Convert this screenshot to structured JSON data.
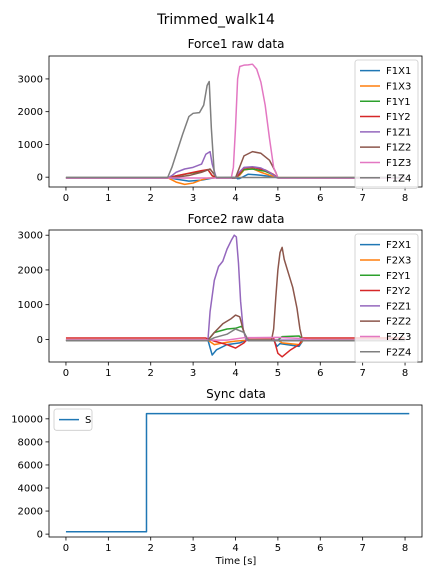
{
  "figure": {
    "suptitle": "Trimmed_walk14"
  },
  "colors": {
    "C0": "#1f77b4",
    "C1": "#ff7f0e",
    "C2": "#2ca02c",
    "C3": "#d62728",
    "C4": "#9467bd",
    "C5": "#8c564b",
    "C6": "#e377c2",
    "C7": "#7f7f7f"
  },
  "chart_data": [
    {
      "type": "line",
      "title": "Force1 raw data",
      "xlabel": "",
      "ylabel": "",
      "xlim": [
        -0.4,
        8.4
      ],
      "ylim": [
        -300,
        3700
      ],
      "xticks": [
        0,
        1,
        2,
        3,
        4,
        5,
        6,
        7,
        8
      ],
      "yticks": [
        0,
        1000,
        2000,
        3000
      ],
      "legend_position": "upper right",
      "series": [
        {
          "name": "F1X1",
          "color": "C0",
          "points": [
            [
              0,
              -10
            ],
            [
              2.4,
              -10
            ],
            [
              2.6,
              -60
            ],
            [
              2.9,
              -120
            ],
            [
              3.2,
              -90
            ],
            [
              3.4,
              -40
            ],
            [
              3.55,
              -10
            ],
            [
              4.0,
              -5
            ],
            [
              4.05,
              -50
            ],
            [
              4.1,
              -40
            ],
            [
              4.3,
              90
            ],
            [
              4.6,
              60
            ],
            [
              4.9,
              10
            ],
            [
              5.0,
              -20
            ],
            [
              8.0,
              -10
            ]
          ]
        },
        {
          "name": "F1X3",
          "color": "C1",
          "points": [
            [
              0,
              -15
            ],
            [
              2.4,
              -15
            ],
            [
              2.6,
              -150
            ],
            [
              2.8,
              -220
            ],
            [
              3.0,
              -180
            ],
            [
              3.2,
              -80
            ],
            [
              3.35,
              -30
            ],
            [
              3.55,
              -15
            ],
            [
              4.0,
              -10
            ],
            [
              4.1,
              60
            ],
            [
              4.2,
              220
            ],
            [
              4.4,
              260
            ],
            [
              4.6,
              150
            ],
            [
              4.8,
              60
            ],
            [
              4.95,
              10
            ],
            [
              5.0,
              -15
            ],
            [
              8.0,
              -15
            ]
          ]
        },
        {
          "name": "F1Y1",
          "color": "C2",
          "points": [
            [
              0,
              -20
            ],
            [
              2.4,
              -20
            ],
            [
              2.6,
              40
            ],
            [
              2.9,
              110
            ],
            [
              3.2,
              170
            ],
            [
              3.35,
              230
            ],
            [
              3.45,
              40
            ],
            [
              3.55,
              -20
            ],
            [
              4.0,
              -20
            ],
            [
              4.05,
              30
            ],
            [
              4.2,
              230
            ],
            [
              4.4,
              250
            ],
            [
              4.7,
              180
            ],
            [
              4.9,
              70
            ],
            [
              5.0,
              -20
            ],
            [
              8.0,
              -20
            ]
          ]
        },
        {
          "name": "F1Y2",
          "color": "C3",
          "points": [
            [
              0,
              -20
            ],
            [
              2.4,
              -20
            ],
            [
              2.6,
              40
            ],
            [
              2.9,
              120
            ],
            [
              3.2,
              200
            ],
            [
              3.35,
              230
            ],
            [
              3.45,
              50
            ],
            [
              3.55,
              -20
            ],
            [
              4.0,
              -20
            ],
            [
              4.05,
              40
            ],
            [
              4.2,
              280
            ],
            [
              4.4,
              300
            ],
            [
              4.7,
              220
            ],
            [
              4.9,
              80
            ],
            [
              5.0,
              -20
            ],
            [
              8.0,
              -20
            ]
          ]
        },
        {
          "name": "F1Z1",
          "color": "C4",
          "points": [
            [
              0,
              -30
            ],
            [
              2.4,
              -30
            ],
            [
              2.5,
              50
            ],
            [
              2.6,
              150
            ],
            [
              2.8,
              250
            ],
            [
              3.0,
              300
            ],
            [
              3.2,
              400
            ],
            [
              3.3,
              700
            ],
            [
              3.4,
              780
            ],
            [
              3.45,
              400
            ],
            [
              3.55,
              -30
            ],
            [
              4.0,
              -30
            ],
            [
              4.05,
              100
            ],
            [
              4.2,
              300
            ],
            [
              4.4,
              320
            ],
            [
              4.6,
              280
            ],
            [
              4.8,
              150
            ],
            [
              5.0,
              -30
            ],
            [
              8.0,
              -30
            ]
          ]
        },
        {
          "name": "F1Z2",
          "color": "C5",
          "points": [
            [
              0,
              -20
            ],
            [
              2.4,
              -20
            ],
            [
              2.6,
              0
            ],
            [
              2.9,
              50
            ],
            [
              3.2,
              150
            ],
            [
              3.4,
              250
            ],
            [
              3.5,
              80
            ],
            [
              3.55,
              -20
            ],
            [
              4.0,
              -20
            ],
            [
              4.05,
              150
            ],
            [
              4.2,
              650
            ],
            [
              4.4,
              780
            ],
            [
              4.6,
              730
            ],
            [
              4.8,
              520
            ],
            [
              4.95,
              150
            ],
            [
              5.0,
              -20
            ],
            [
              8.0,
              -20
            ]
          ]
        },
        {
          "name": "F1Z3",
          "color": "C6",
          "points": [
            [
              0,
              -25
            ],
            [
              3.9,
              -25
            ],
            [
              3.95,
              300
            ],
            [
              4.0,
              1500
            ],
            [
              4.05,
              3000
            ],
            [
              4.1,
              3380
            ],
            [
              4.2,
              3420
            ],
            [
              4.3,
              3430
            ],
            [
              4.4,
              3450
            ],
            [
              4.5,
              3300
            ],
            [
              4.6,
              2900
            ],
            [
              4.7,
              2200
            ],
            [
              4.8,
              1200
            ],
            [
              4.9,
              300
            ],
            [
              5.0,
              -25
            ],
            [
              8.0,
              -25
            ]
          ]
        },
        {
          "name": "F1Z4",
          "color": "C7",
          "points": [
            [
              0,
              -10
            ],
            [
              2.4,
              -10
            ],
            [
              2.5,
              300
            ],
            [
              2.6,
              700
            ],
            [
              2.75,
              1300
            ],
            [
              2.9,
              1850
            ],
            [
              3.0,
              1950
            ],
            [
              3.15,
              1970
            ],
            [
              3.25,
              2200
            ],
            [
              3.33,
              2800
            ],
            [
              3.38,
              2920
            ],
            [
              3.43,
              1500
            ],
            [
              3.5,
              100
            ],
            [
              3.55,
              -10
            ],
            [
              8.0,
              -10
            ]
          ]
        }
      ]
    },
    {
      "type": "line",
      "title": "Force2 raw data",
      "xlabel": "",
      "ylabel": "",
      "xlim": [
        -0.4,
        8.4
      ],
      "ylim": [
        -650,
        3150
      ],
      "xticks": [
        0,
        1,
        2,
        3,
        4,
        5,
        6,
        7,
        8
      ],
      "yticks": [
        0,
        1000,
        2000,
        3000
      ],
      "legend_position": "upper right",
      "series": [
        {
          "name": "F2X1",
          "color": "C0",
          "points": [
            [
              0,
              -20
            ],
            [
              3.35,
              -20
            ],
            [
              3.45,
              -450
            ],
            [
              3.55,
              -300
            ],
            [
              3.8,
              -150
            ],
            [
              4.1,
              -100
            ],
            [
              4.2,
              -50
            ],
            [
              4.3,
              -20
            ],
            [
              4.9,
              -20
            ],
            [
              4.98,
              -200
            ],
            [
              5.05,
              -120
            ],
            [
              5.5,
              -200
            ],
            [
              5.6,
              -20
            ],
            [
              8.0,
              -20
            ]
          ]
        },
        {
          "name": "F2X3",
          "color": "C1",
          "points": [
            [
              0,
              -20
            ],
            [
              3.35,
              -20
            ],
            [
              3.5,
              -150
            ],
            [
              3.8,
              -80
            ],
            [
              4.0,
              -50
            ],
            [
              4.3,
              -20
            ],
            [
              5.0,
              -20
            ],
            [
              5.1,
              -100
            ],
            [
              5.5,
              -150
            ],
            [
              5.6,
              -20
            ],
            [
              8.0,
              -20
            ]
          ]
        },
        {
          "name": "F2Y1",
          "color": "C2",
          "points": [
            [
              0,
              -20
            ],
            [
              3.35,
              -20
            ],
            [
              3.5,
              200
            ],
            [
              3.8,
              300
            ],
            [
              4.0,
              320
            ],
            [
              4.15,
              380
            ],
            [
              4.25,
              50
            ],
            [
              4.3,
              -20
            ],
            [
              5.0,
              -20
            ],
            [
              5.1,
              80
            ],
            [
              5.5,
              100
            ],
            [
              5.6,
              -20
            ],
            [
              8.0,
              -20
            ]
          ]
        },
        {
          "name": "F2Y2",
          "color": "C3",
          "points": [
            [
              0,
              40
            ],
            [
              3.3,
              40
            ],
            [
              3.5,
              -50
            ],
            [
              3.8,
              -150
            ],
            [
              4.0,
              -250
            ],
            [
              4.2,
              -100
            ],
            [
              4.3,
              40
            ],
            [
              4.9,
              40
            ],
            [
              5.0,
              -400
            ],
            [
              5.1,
              -500
            ],
            [
              5.3,
              -300
            ],
            [
              5.5,
              -150
            ],
            [
              5.6,
              40
            ],
            [
              8.0,
              40
            ]
          ]
        },
        {
          "name": "F2Z1",
          "color": "C4",
          "points": [
            [
              0,
              -20
            ],
            [
              3.35,
              -20
            ],
            [
              3.4,
              800
            ],
            [
              3.5,
              1700
            ],
            [
              3.6,
              2100
            ],
            [
              3.7,
              2250
            ],
            [
              3.8,
              2600
            ],
            [
              3.9,
              2850
            ],
            [
              3.97,
              3000
            ],
            [
              4.02,
              2950
            ],
            [
              4.07,
              2200
            ],
            [
              4.12,
              1100
            ],
            [
              4.18,
              300
            ],
            [
              4.25,
              -20
            ],
            [
              8.0,
              -20
            ]
          ]
        },
        {
          "name": "F2Z2",
          "color": "C5",
          "points": [
            [
              0,
              -20
            ],
            [
              3.35,
              -20
            ],
            [
              3.5,
              200
            ],
            [
              3.7,
              450
            ],
            [
              3.9,
              600
            ],
            [
              4.0,
              700
            ],
            [
              4.1,
              650
            ],
            [
              4.2,
              200
            ],
            [
              4.3,
              -20
            ],
            [
              4.85,
              -20
            ],
            [
              4.9,
              300
            ],
            [
              4.95,
              1200
            ],
            [
              5.0,
              2000
            ],
            [
              5.05,
              2500
            ],
            [
              5.1,
              2650
            ],
            [
              5.15,
              2300
            ],
            [
              5.25,
              1900
            ],
            [
              5.35,
              1500
            ],
            [
              5.45,
              900
            ],
            [
              5.52,
              300
            ],
            [
              5.58,
              -20
            ],
            [
              8.0,
              -20
            ]
          ]
        },
        {
          "name": "F2Z3",
          "color": "C6",
          "points": [
            [
              0,
              -20
            ],
            [
              3.8,
              -20
            ],
            [
              4.2,
              50
            ],
            [
              5.0,
              60
            ],
            [
              5.5,
              30
            ],
            [
              5.8,
              -20
            ],
            [
              8.0,
              -20
            ]
          ]
        },
        {
          "name": "F2Z4",
          "color": "C7",
          "points": [
            [
              0,
              -40
            ],
            [
              3.35,
              -40
            ],
            [
              3.5,
              50
            ],
            [
              3.8,
              150
            ],
            [
              4.0,
              300
            ],
            [
              4.2,
              200
            ],
            [
              4.3,
              -40
            ],
            [
              8.0,
              -40
            ]
          ]
        }
      ]
    },
    {
      "type": "line",
      "title": "Sync data",
      "xlabel": "Time [s]",
      "ylabel": "",
      "xlim": [
        -0.4,
        8.4
      ],
      "ylim": [
        -250,
        11200
      ],
      "xticks": [
        0,
        1,
        2,
        3,
        4,
        5,
        6,
        7,
        8
      ],
      "yticks": [
        0,
        2000,
        4000,
        6000,
        8000,
        10000
      ],
      "legend_position": "upper left",
      "series": [
        {
          "name": "S",
          "color": "C0",
          "points": [
            [
              0,
              200
            ],
            [
              1.9,
              200
            ],
            [
              1.9,
              10450
            ],
            [
              8.1,
              10450
            ]
          ]
        }
      ]
    }
  ]
}
